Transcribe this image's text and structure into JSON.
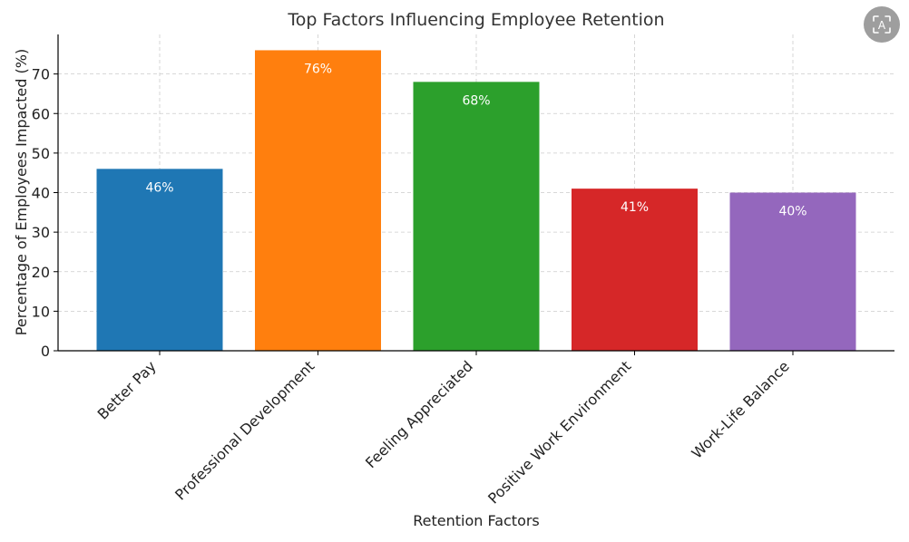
{
  "chart_data": {
    "type": "bar",
    "title": "Top Factors Influencing Employee Retention",
    "xlabel": "Retention Factors",
    "ylabel": "Percentage of Employees Impacted (%)",
    "categories": [
      "Better Pay",
      "Professional Development",
      "Feeling Appreciated",
      "Positive Work Environment",
      "Work-Life Balance"
    ],
    "values": [
      46,
      76,
      68,
      41,
      40
    ],
    "data_labels": [
      "46%",
      "76%",
      "68%",
      "41%",
      "40%"
    ],
    "colors": [
      "#1f77b4",
      "#ff7f0e",
      "#2ca02c",
      "#d62728",
      "#9467bd"
    ],
    "ylim": [
      0,
      80
    ],
    "yticks": [
      0,
      10,
      20,
      30,
      40,
      50,
      60,
      70
    ],
    "grid": true,
    "legend": "none"
  },
  "toolbar": {
    "translate_icon": "translate-icon"
  }
}
